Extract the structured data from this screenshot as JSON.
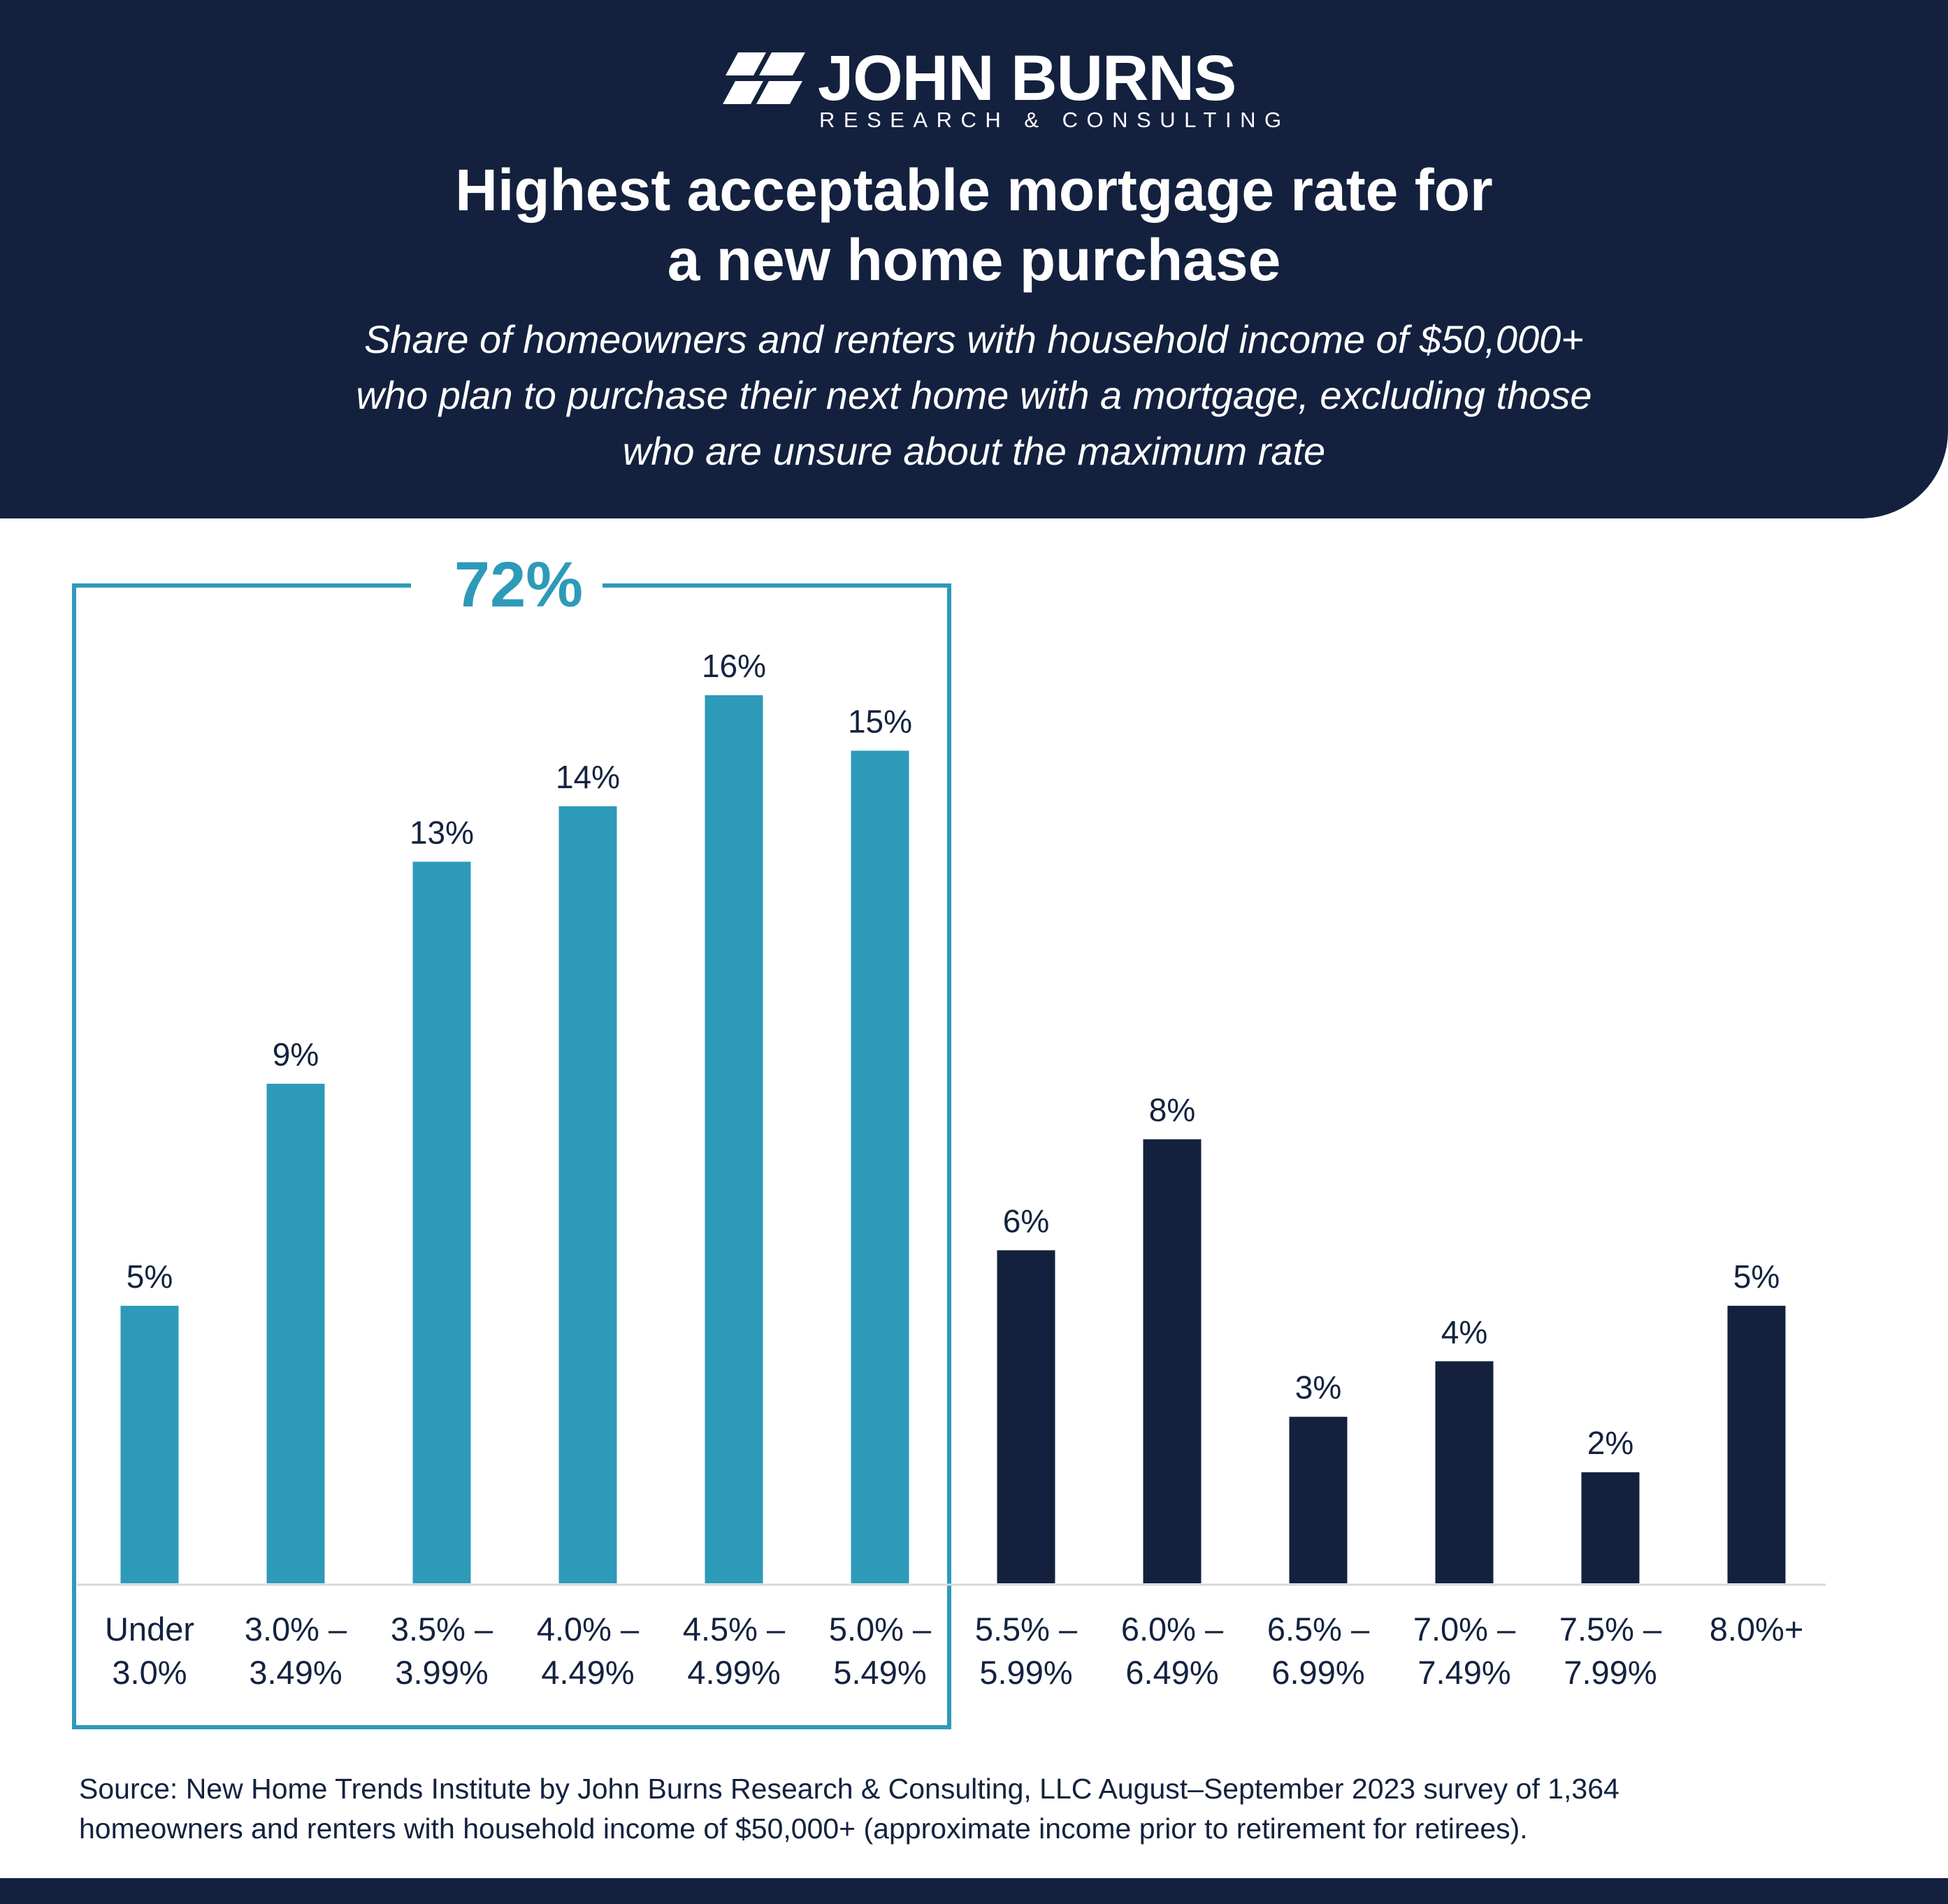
{
  "brand": {
    "name": "JOHN BURNS",
    "tagline": "RESEARCH & CONSULTING",
    "logo_icon": "john-burns-logo-mark"
  },
  "colors": {
    "header_bg": "#13213f",
    "highlight": "#2e9ab9",
    "dark_bar": "#13213f",
    "axis": "#d5d8dd"
  },
  "chart_data": {
    "type": "bar",
    "title": [
      "Highest acceptable mortgage rate for",
      "a new home purchase"
    ],
    "subtitle": [
      "Share of homeowners and renters with household income of $50,000+",
      "who plan to purchase their next home with a mortgage, excluding those",
      "who are unsure about the maximum rate"
    ],
    "categories": [
      [
        "Under",
        "3.0%"
      ],
      [
        "3.0% –",
        "3.49%"
      ],
      [
        "3.5% –",
        "3.99%"
      ],
      [
        "4.0% –",
        "4.49%"
      ],
      [
        "4.5% –",
        "4.99%"
      ],
      [
        "5.0% –",
        "5.49%"
      ],
      [
        "5.5% –",
        "5.99%"
      ],
      [
        "6.0% –",
        "6.49%"
      ],
      [
        "6.5% –",
        "6.99%"
      ],
      [
        "7.0% –",
        "7.49%"
      ],
      [
        "7.5% –",
        "7.99%"
      ],
      [
        "8.0%+"
      ]
    ],
    "values": [
      5,
      9,
      13,
      14,
      16,
      15,
      6,
      8,
      3,
      4,
      2,
      5
    ],
    "value_labels": [
      "5%",
      "9%",
      "13%",
      "14%",
      "16%",
      "15%",
      "6%",
      "8%",
      "3%",
      "4%",
      "2%",
      "5%"
    ],
    "highlight_count": 6,
    "highlight_label": "72%",
    "xlabel": "",
    "ylabel": "",
    "ylim": [
      0,
      16
    ],
    "grid": false
  },
  "source": [
    "Source: New Home Trends Institute by John Burns Research & Consulting, LLC August–September 2023 survey of 1,364",
    "homeowners and renters with household income of $50,000+ (approximate income prior to retirement for retirees)."
  ]
}
